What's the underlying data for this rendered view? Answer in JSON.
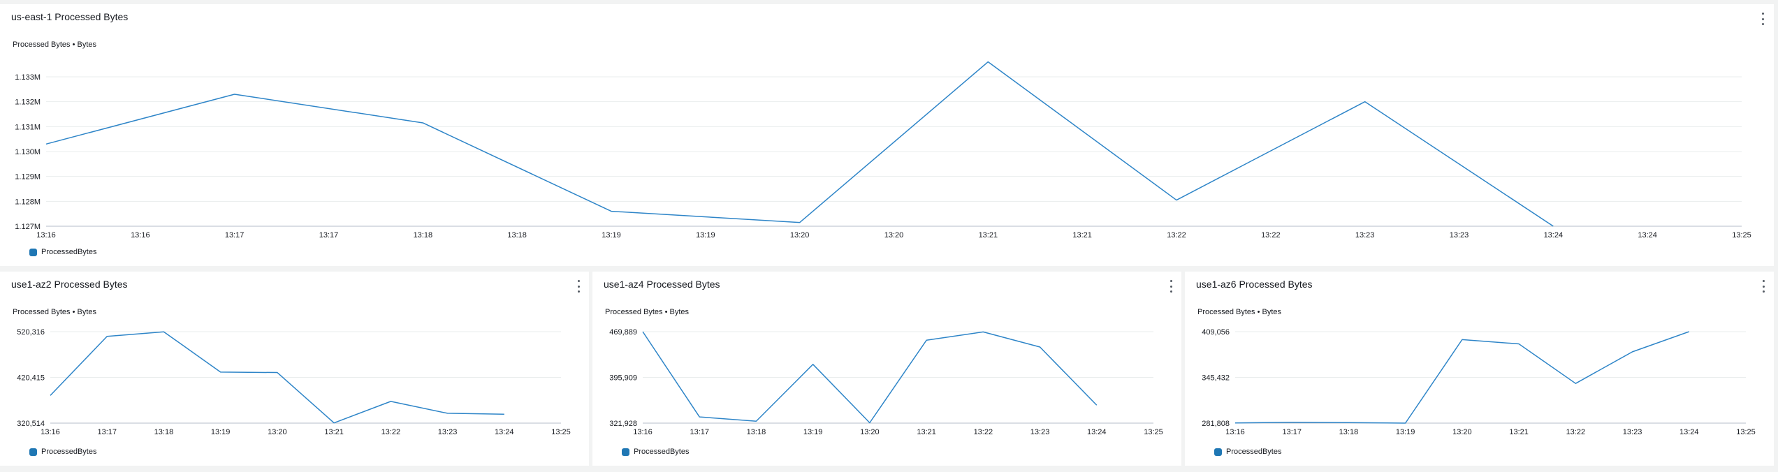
{
  "colors": {
    "series": "#2e85c8",
    "grid": "#eaeded",
    "axis": "#b6bec9",
    "text": "#16191f"
  },
  "panels": [
    {
      "title": "us-east-1 Processed Bytes",
      "subtitle": "Processed Bytes • Bytes",
      "legend": "ProcessedBytes",
      "menu_icon": "vertical-ellipsis-icon",
      "chart_data": {
        "type": "line",
        "series": [
          {
            "name": "ProcessedBytes"
          }
        ],
        "x_ticks": [
          "13:16",
          "13:16",
          "13:17",
          "13:17",
          "13:18",
          "13:18",
          "13:19",
          "13:19",
          "13:20",
          "13:20",
          "13:21",
          "13:21",
          "13:22",
          "13:22",
          "13:23",
          "13:23",
          "13:24",
          "13:24",
          "13:25"
        ],
        "y_ticks": [
          "1.127M",
          "1.128M",
          "1.129M",
          "1.130M",
          "1.131M",
          "1.132M",
          "1.133M"
        ],
        "x": [
          "13:16",
          "13:17",
          "13:18",
          "13:19",
          "13:20",
          "13:21",
          "13:22",
          "13:23",
          "13:24"
        ],
        "values": [
          1130300,
          1132300,
          1131150,
          1127600,
          1127150,
          1133600,
          1128050,
          1132000,
          1127000
        ],
        "ylim": [
          1127000,
          1133000
        ]
      }
    },
    {
      "title": "use1-az2 Processed Bytes",
      "subtitle": "Processed Bytes • Bytes",
      "legend": "ProcessedBytes",
      "menu_icon": "vertical-ellipsis-icon",
      "chart_data": {
        "type": "line",
        "series": [
          {
            "name": "ProcessedBytes"
          }
        ],
        "x_ticks": [
          "13:16",
          "13:17",
          "13:18",
          "13:19",
          "13:20",
          "13:21",
          "13:22",
          "13:23",
          "13:24",
          "13:25"
        ],
        "y_ticks": [
          "320,514",
          "420,415",
          "520,316"
        ],
        "x": [
          "13:16",
          "13:17",
          "13:18",
          "13:19",
          "13:20",
          "13:21",
          "13:22",
          "13:23",
          "13:24"
        ],
        "values": [
          381000,
          510000,
          520000,
          432000,
          431000,
          321000,
          368000,
          342000,
          340000
        ],
        "ylim": [
          320514,
          520316
        ]
      }
    },
    {
      "title": "use1-az4 Processed Bytes",
      "subtitle": "Processed Bytes • Bytes",
      "legend": "ProcessedBytes",
      "menu_icon": "vertical-ellipsis-icon",
      "chart_data": {
        "type": "line",
        "series": [
          {
            "name": "ProcessedBytes"
          }
        ],
        "x_ticks": [
          "13:16",
          "13:17",
          "13:18",
          "13:19",
          "13:20",
          "13:21",
          "13:22",
          "13:23",
          "13:24",
          "13:25"
        ],
        "y_ticks": [
          "321,928",
          "395,909",
          "469,889"
        ],
        "x": [
          "13:16",
          "13:17",
          "13:18",
          "13:19",
          "13:20",
          "13:21",
          "13:22",
          "13:23",
          "13:24"
        ],
        "values": [
          469889,
          332000,
          325000,
          417000,
          322500,
          456000,
          469500,
          445000,
          351000
        ],
        "ylim": [
          321928,
          469889
        ]
      }
    },
    {
      "title": "use1-az6 Processed Bytes",
      "subtitle": "Processed Bytes • Bytes",
      "legend": "ProcessedBytes",
      "menu_icon": "vertical-ellipsis-icon",
      "chart_data": {
        "type": "line",
        "series": [
          {
            "name": "ProcessedBytes"
          }
        ],
        "x_ticks": [
          "13:16",
          "13:17",
          "13:18",
          "13:19",
          "13:20",
          "13:21",
          "13:22",
          "13:23",
          "13:24",
          "13:25"
        ],
        "y_ticks": [
          "281,808",
          "345,432",
          "409,056"
        ],
        "x": [
          "13:16",
          "13:17",
          "13:18",
          "13:19",
          "13:20",
          "13:21",
          "13:22",
          "13:23",
          "13:24"
        ],
        "values": [
          282000,
          283000,
          282500,
          281808,
          398000,
          392000,
          337000,
          381000,
          409056
        ],
        "ylim": [
          281808,
          409056
        ]
      }
    }
  ]
}
